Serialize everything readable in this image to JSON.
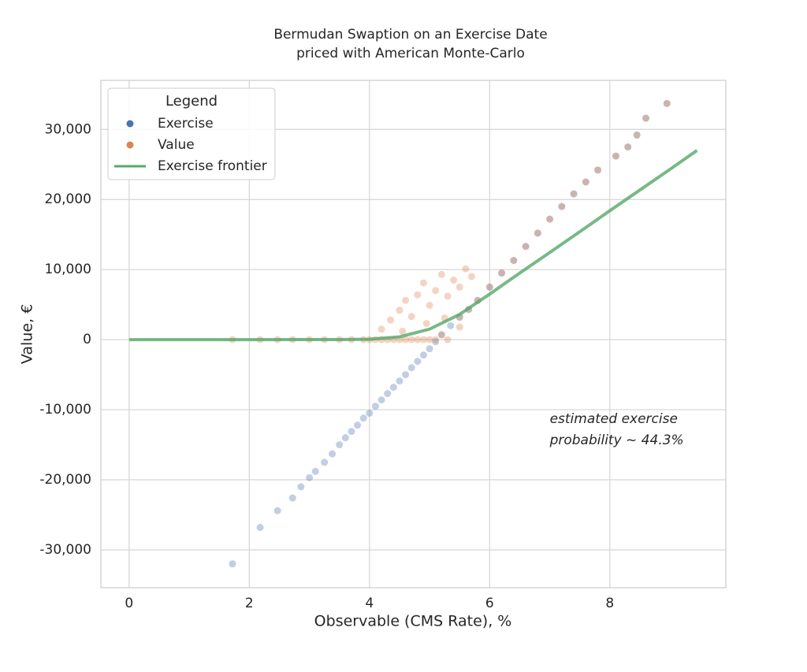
{
  "chart_data": {
    "type": "scatter",
    "title": [
      "Bermudan Swaption on an Exercise Date",
      "priced with American Monte-Carlo"
    ],
    "x_label": "Observable (CMS Rate), %",
    "y_label": "Value, €",
    "annotation": [
      "estimated exercise",
      "probability ~ 44.3%"
    ],
    "legend_title": "Legend",
    "legend": "upper left",
    "grid": true,
    "xlim": [
      -0.47,
      9.93
    ],
    "ylim": [
      -35400,
      37000
    ],
    "xticks": [
      0,
      2,
      4,
      6,
      8
    ],
    "yticks": [
      {
        "value": -30000,
        "label": "-30,000"
      },
      {
        "value": -20000,
        "label": "-20,000"
      },
      {
        "value": -10000,
        "label": "-10,000"
      },
      0,
      {
        "value": 10000,
        "label": "10,000"
      },
      {
        "value": 20000,
        "label": "20,000"
      },
      {
        "value": 30000,
        "label": "30,000"
      }
    ],
    "series": [
      {
        "name": "Exercise",
        "color": "#4c72b0",
        "style": "points",
        "x": [
          1.72,
          2.18,
          2.47,
          2.72,
          2.86,
          3.0,
          3.1,
          3.25,
          3.38,
          3.5,
          3.6,
          3.7,
          3.8,
          3.9,
          4.0,
          4.1,
          4.2,
          4.3,
          4.4,
          4.5,
          4.6,
          4.7,
          4.8,
          4.9,
          5.0,
          5.1,
          5.2,
          5.35,
          5.5,
          5.65,
          5.8,
          6.0,
          6.2,
          6.4,
          6.6,
          6.8,
          7.0,
          7.2,
          7.4,
          7.6,
          7.8,
          8.1,
          8.3,
          8.45,
          8.6,
          8.95
        ],
        "values": [
          -32000,
          -26800,
          -24400,
          -22600,
          -21000,
          -19700,
          -18800,
          -17500,
          -16300,
          -15000,
          -14000,
          -13100,
          -12200,
          -11200,
          -10500,
          -9500,
          -8600,
          -7700,
          -6800,
          -5900,
          -5000,
          -4000,
          -3100,
          -2200,
          -1300,
          -300,
          700,
          2000,
          3200,
          4300,
          5600,
          7500,
          9500,
          11300,
          13300,
          15200,
          17200,
          19000,
          20800,
          22500,
          24200,
          26200,
          27500,
          29200,
          31600,
          33700
        ]
      },
      {
        "name": "Value",
        "color": "#dd8452",
        "style": "points",
        "x": [
          1.72,
          2.18,
          2.47,
          2.72,
          3.0,
          3.25,
          3.5,
          3.7,
          3.9,
          4.0,
          4.1,
          4.2,
          4.3,
          4.4,
          4.5,
          4.6,
          4.7,
          4.8,
          4.9,
          5.0,
          5.1,
          5.2,
          5.3,
          5.5,
          5.8,
          4.2,
          4.35,
          4.5,
          4.6,
          4.7,
          4.8,
          4.9,
          5.0,
          5.1,
          5.2,
          5.3,
          5.4,
          5.5,
          5.6,
          5.7,
          4.55,
          4.95,
          5.25,
          5.5,
          5.65,
          6.0,
          6.2,
          6.4,
          6.6,
          6.8,
          7.0,
          7.2,
          7.4,
          7.6,
          7.8,
          8.1,
          8.3,
          8.45,
          8.6,
          8.95
        ],
        "values": [
          0,
          0,
          0,
          0,
          0,
          0,
          0,
          0,
          0,
          0,
          0,
          0,
          0,
          0,
          0,
          0,
          0,
          0,
          0,
          0,
          0,
          700,
          0,
          3200,
          5600,
          1500,
          2800,
          4200,
          5600,
          3300,
          6400,
          8100,
          4900,
          7000,
          9300,
          6200,
          8500,
          7500,
          10100,
          9000,
          1200,
          2300,
          3100,
          1800,
          4300,
          7500,
          9500,
          11300,
          13300,
          15200,
          17200,
          19000,
          20800,
          22500,
          24200,
          26200,
          27500,
          29200,
          31600,
          33700
        ]
      },
      {
        "name": "Exercise frontier",
        "color": "#55a868",
        "style": "line",
        "x": [
          0,
          1,
          2,
          3,
          3.5,
          4,
          4.5,
          5,
          5.5,
          6,
          6.5,
          7,
          7.5,
          8,
          8.5,
          9,
          9.45
        ],
        "values": [
          0,
          0,
          0,
          10,
          20,
          50,
          400,
          1500,
          3600,
          6500,
          9500,
          12440,
          15400,
          18400,
          21350,
          24300,
          27000
        ]
      }
    ]
  }
}
